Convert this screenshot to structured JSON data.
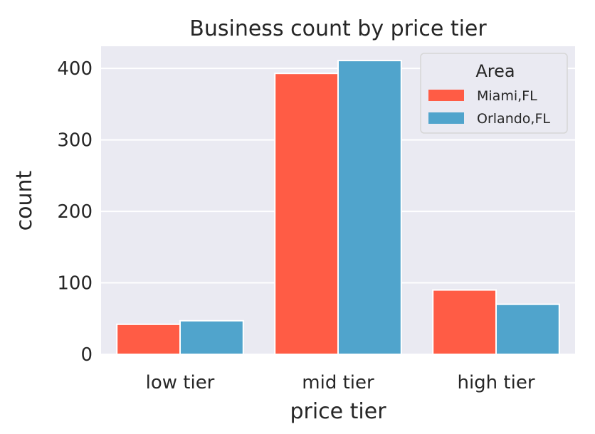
{
  "chart_data": {
    "type": "bar",
    "title": "Business count by price tier",
    "xlabel": "price tier",
    "ylabel": "count",
    "categories": [
      "low tier",
      "mid tier",
      "high tier"
    ],
    "series": [
      {
        "name": "Miami,FL",
        "values": [
          42,
          393,
          90
        ],
        "color": "#ff5c45"
      },
      {
        "name": "Orlando,FL",
        "values": [
          47,
          411,
          70
        ],
        "color": "#50a4cc"
      }
    ],
    "ylim": [
      0,
      431
    ],
    "yticks": [
      0,
      100,
      200,
      300,
      400
    ],
    "legend": {
      "title": "Area",
      "placement": "top-right"
    },
    "grid": true,
    "background_color": "#eaeaf2"
  }
}
